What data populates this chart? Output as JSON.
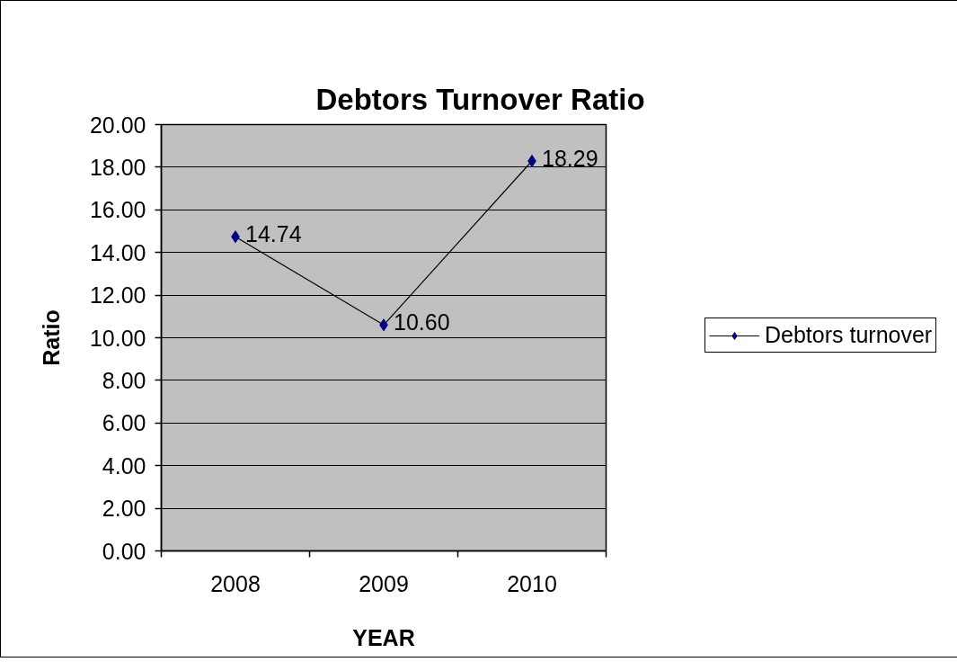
{
  "chart_data": {
    "type": "line",
    "title": "Debtors Turnover Ratio",
    "xlabel": "YEAR",
    "ylabel": "Ratio",
    "categories": [
      "2008",
      "2009",
      "2010"
    ],
    "series": [
      {
        "name": "Debtors turnover",
        "color": "#000080",
        "values": [
          14.74,
          10.6,
          18.29
        ],
        "value_labels": [
          "14.74",
          "10.60",
          "18.29"
        ]
      }
    ],
    "ylim": [
      0,
      20
    ],
    "yticks": [
      {
        "value": 0,
        "label": "0.00"
      },
      {
        "value": 2,
        "label": "2.00"
      },
      {
        "value": 4,
        "label": "4.00"
      },
      {
        "value": 6,
        "label": "6.00"
      },
      {
        "value": 8,
        "label": "8.00"
      },
      {
        "value": 10,
        "label": "10.00"
      },
      {
        "value": 12,
        "label": "12.00"
      },
      {
        "value": 14,
        "label": "14.00"
      },
      {
        "value": 16,
        "label": "16.00"
      },
      {
        "value": 18,
        "label": "18.00"
      },
      {
        "value": 20,
        "label": "20.00"
      }
    ],
    "grid": "y",
    "legend": "right",
    "marker": "diamond",
    "line_style": "solid"
  }
}
